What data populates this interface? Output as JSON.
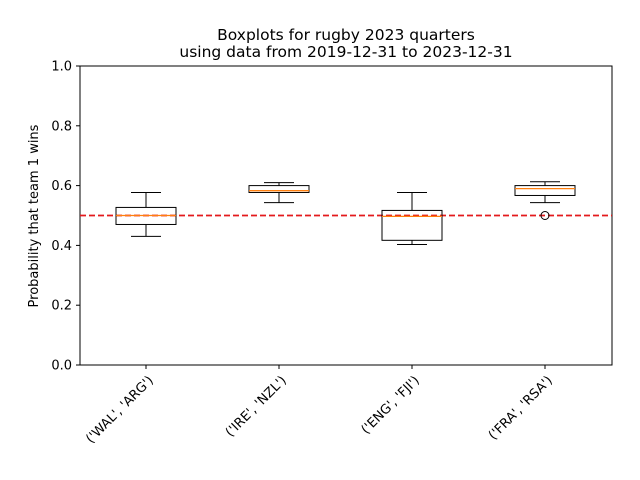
{
  "chart_data": {
    "type": "boxplot",
    "title": "Boxplots for rugby 2023 quarters",
    "subtitle": "using data from 2019-12-31 to 2023-12-31",
    "xlabel": "",
    "ylabel": "Probability that team 1 wins",
    "ylim": [
      0.0,
      1.0
    ],
    "yticks": [
      "0.0",
      "0.2",
      "0.4",
      "0.6",
      "0.8",
      "1.0"
    ],
    "categories": [
      "('WAL', 'ARG')",
      "('IRE', 'NZL')",
      "('ENG', 'FJI')",
      "('FRA', 'RSA')"
    ],
    "boxes": [
      {
        "whisker_low": 0.43,
        "q1": 0.47,
        "median": 0.5,
        "q3": 0.527,
        "whisker_high": 0.577,
        "outliers": []
      },
      {
        "whisker_low": 0.543,
        "q1": 0.577,
        "median": 0.583,
        "q3": 0.6,
        "whisker_high": 0.61,
        "outliers": []
      },
      {
        "whisker_low": 0.403,
        "q1": 0.417,
        "median": 0.497,
        "q3": 0.517,
        "whisker_high": 0.577,
        "outliers": []
      },
      {
        "whisker_low": 0.543,
        "q1": 0.567,
        "median": 0.59,
        "q3": 0.6,
        "whisker_high": 0.613,
        "outliers": [
          0.5
        ]
      }
    ],
    "reference_line": {
      "y": 0.5,
      "style": "dashed",
      "color": "#e41a1c"
    },
    "colors": {
      "box": "#000000",
      "median": "#ff7f0e",
      "reference": "#e41a1c"
    },
    "grid": false,
    "legend": "none"
  }
}
